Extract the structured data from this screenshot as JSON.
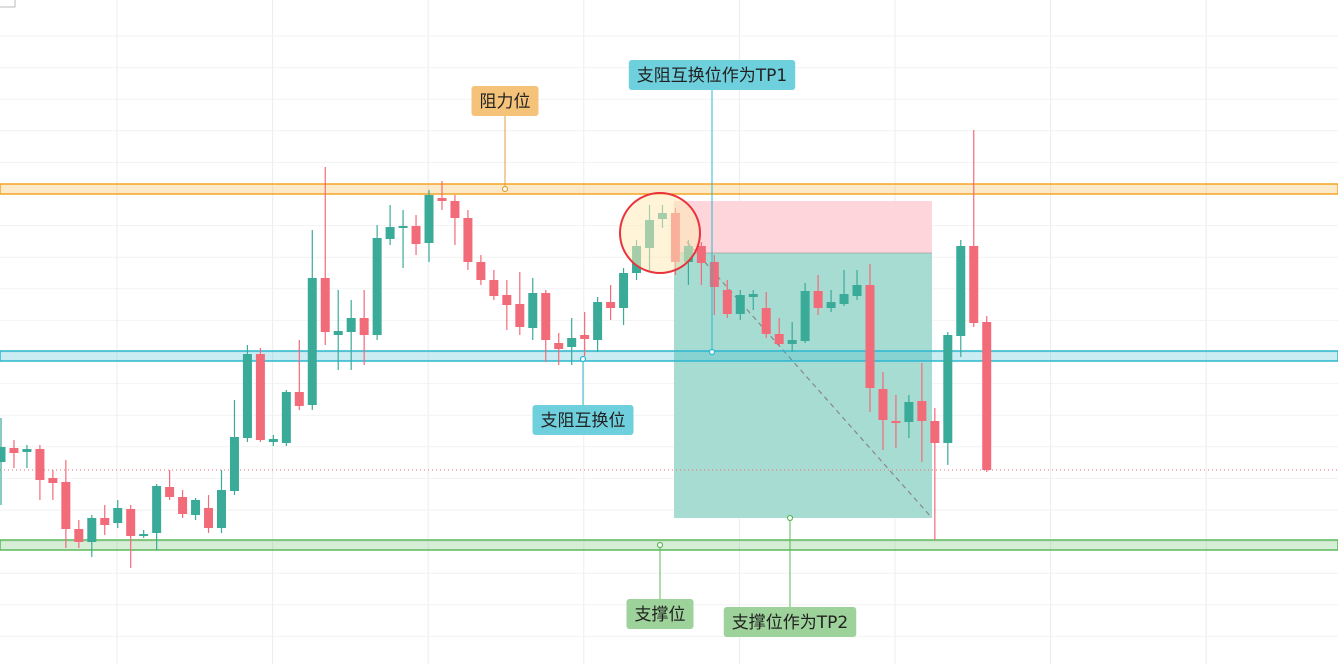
{
  "chart_data": {
    "type": "candlestick",
    "ylim": [
      0,
      664
    ],
    "open": [
      202,
      216,
      212,
      215,
      186,
      182,
      135,
      122,
      146,
      141,
      155,
      129,
      131,
      177,
      167,
      149,
      156,
      136,
      173,
      226,
      310,
      222,
      221,
      272,
      259,
      386,
      329,
      332,
      346,
      329,
      425,
      436,
      438,
      421,
      466,
      463,
      446,
      402,
      384,
      369,
      360,
      336,
      371,
      321,
      317,
      329,
      324,
      362,
      356,
      391,
      416,
      445,
      451,
      402,
      418,
      402,
      374,
      350,
      367,
      356,
      330,
      320,
      323,
      373,
      356,
      360,
      368,
      379,
      275,
      243,
      242,
      263,
      243,
      221,
      328,
      418,
      342
    ],
    "high": [
      246,
      224,
      219,
      219,
      194,
      204,
      144,
      149,
      159,
      164,
      159,
      134,
      180,
      194,
      174,
      166,
      169,
      194,
      264,
      319,
      316,
      229,
      274,
      324,
      434,
      497,
      374,
      364,
      374,
      439,
      459,
      454,
      449,
      474,
      483,
      469,
      454,
      409,
      394,
      384,
      392,
      386,
      374,
      331,
      346,
      352,
      367,
      379,
      396,
      424,
      459,
      459,
      456,
      424,
      422,
      409,
      384,
      374,
      374,
      372,
      346,
      342,
      381,
      389,
      374,
      394,
      394,
      400,
      292,
      269,
      269,
      301,
      256,
      332,
      424,
      534,
      348
    ],
    "low": [
      159,
      196,
      196,
      164,
      164,
      116,
      116,
      107,
      129,
      136,
      96,
      126,
      114,
      164,
      146,
      144,
      131,
      131,
      169,
      222,
      222,
      218,
      218,
      254,
      254,
      319,
      294,
      294,
      299,
      324,
      419,
      396,
      409,
      402,
      454,
      419,
      394,
      379,
      364,
      334,
      329,
      324,
      302,
      299,
      299,
      308,
      312,
      344,
      339,
      384,
      392,
      436,
      389,
      379,
      379,
      349,
      346,
      344,
      354,
      326,
      318,
      312,
      321,
      349,
      352,
      358,
      364,
      252,
      214,
      216,
      226,
      202,
      124,
      199,
      307,
      337,
      192
    ],
    "close": [
      217,
      211,
      215,
      184,
      181,
      135,
      122,
      146,
      139,
      156,
      128,
      130,
      178,
      167,
      150,
      164,
      136,
      174,
      227,
      310,
      224,
      225,
      272,
      258,
      386,
      332,
      333,
      346,
      329,
      426,
      437,
      438,
      420,
      469,
      463,
      446,
      402,
      384,
      368,
      359,
      337,
      371,
      324,
      315,
      326,
      325,
      362,
      356,
      391,
      418,
      444,
      451,
      402,
      418,
      401,
      377,
      350,
      369,
      370,
      330,
      320,
      324,
      373,
      356,
      362,
      370,
      379,
      276,
      244,
      241,
      262,
      243,
      221,
      329,
      418,
      341,
      194
    ],
    "up_color": "#3aab98",
    "down_color": "#f26b78",
    "levels": [
      {
        "value": 475,
        "color": "#f5a623"
      },
      {
        "value": 308,
        "color": "#2bb7d0"
      },
      {
        "value": 119,
        "color": "#5cb85c"
      }
    ],
    "last_price": 194,
    "position": {
      "entry": 411,
      "stop": 463,
      "target": 146
    },
    "annotations": [
      "阻力位",
      "支阻互换位作为TP1",
      "支阻互换位",
      "支撑位",
      "支撑位作为TP2"
    ]
  }
}
